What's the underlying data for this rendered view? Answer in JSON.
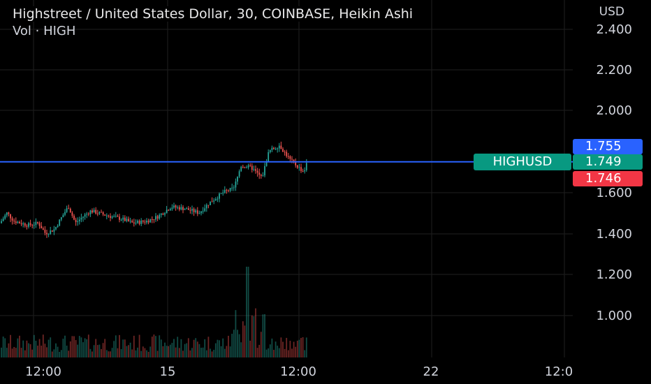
{
  "header": {
    "title": "Highstreet / United States Dollar, 30, COINBASE, Heikin Ashi",
    "subtitle": "Vol · HIGH",
    "currency": "USD"
  },
  "price_tags": {
    "ask": "1.755",
    "last": "1.749",
    "bid": "1.746",
    "symbol": "HIGHUSD"
  },
  "colors": {
    "background": "#000000",
    "up": "#26a69a",
    "down": "#ef5350",
    "price_line": "#2962ff",
    "grid": "#1f1f1f",
    "ask_tag": "#2962ff",
    "last_tag": "#089981",
    "bid_tag": "#f23645"
  },
  "chart_data": {
    "type": "candlestick",
    "title": "Highstreet / United States Dollar, 30, COINBASE, Heikin Ashi",
    "ylim": [
      0.8,
      2.45
    ],
    "y_ticks": [
      "2.400",
      "2.200",
      "2.000",
      "1.600",
      "1.400",
      "1.200",
      "1.000"
    ],
    "x_ticks": [
      "12:00",
      "15",
      "12:00",
      "22",
      "12:0"
    ],
    "last_price": 1.749,
    "price_path": [
      [
        0,
        1.45
      ],
      [
        10,
        1.5
      ],
      [
        20,
        1.46
      ],
      [
        40,
        1.44
      ],
      [
        55,
        1.45
      ],
      [
        65,
        1.4
      ],
      [
        78,
        1.42
      ],
      [
        92,
        1.5
      ],
      [
        98,
        1.53
      ],
      [
        108,
        1.45
      ],
      [
        118,
        1.48
      ],
      [
        130,
        1.51
      ],
      [
        150,
        1.49
      ],
      [
        175,
        1.47
      ],
      [
        190,
        1.45
      ],
      [
        210,
        1.46
      ],
      [
        225,
        1.48
      ],
      [
        245,
        1.53
      ],
      [
        265,
        1.52
      ],
      [
        285,
        1.5
      ],
      [
        300,
        1.55
      ],
      [
        320,
        1.6
      ],
      [
        335,
        1.62
      ],
      [
        345,
        1.73
      ],
      [
        360,
        1.72
      ],
      [
        375,
        1.67
      ],
      [
        385,
        1.8
      ],
      [
        400,
        1.83
      ],
      [
        415,
        1.76
      ],
      [
        428,
        1.72
      ],
      [
        435,
        1.7
      ],
      [
        440,
        1.75
      ]
    ]
  }
}
